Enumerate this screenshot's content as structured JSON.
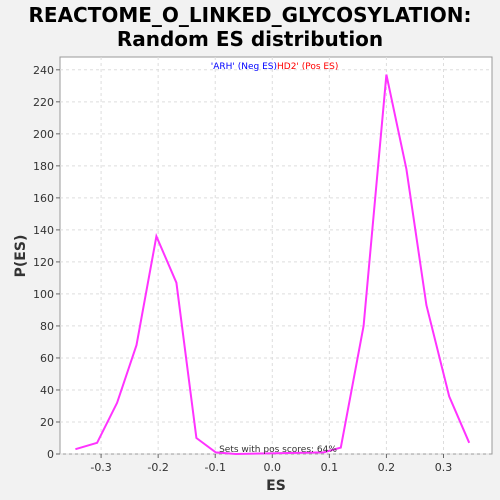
{
  "chart_data": {
    "type": "line",
    "title_line1": "REACTOME_O_LINKED_GLYCOSYLATION:",
    "title_line2": "Random ES distribution",
    "xlabel": "ES",
    "ylabel": "P(ES)",
    "xlim": [
      -0.372,
      0.385
    ],
    "ylim": [
      0,
      248
    ],
    "x_ticks": [
      -0.3,
      -0.2,
      -0.1,
      0.0,
      0.1,
      0.2,
      0.3
    ],
    "x_tick_labels": [
      "-0.3",
      "-0.2",
      "-0.1",
      "0.0",
      "0.1",
      "0.2",
      "0.3"
    ],
    "y_ticks": [
      0,
      20,
      40,
      60,
      80,
      100,
      120,
      140,
      160,
      180,
      200,
      220,
      240
    ],
    "y_tick_labels": [
      "0",
      "20",
      "40",
      "60",
      "80",
      "100",
      "120",
      "140",
      "160",
      "180",
      "200",
      "220",
      "240"
    ],
    "grid": true,
    "series": [
      {
        "color": "#ff33ff",
        "x": [
          -0.345,
          -0.307,
          -0.272,
          -0.238,
          -0.203,
          -0.168,
          -0.133,
          -0.099,
          -0.064,
          0.09,
          0.12,
          0.16,
          0.2,
          0.235,
          0.27,
          0.31,
          0.345
        ],
        "y": [
          3,
          7,
          32,
          68,
          136,
          107,
          10,
          1,
          0,
          1,
          4,
          80,
          237,
          178,
          93,
          36,
          7
        ]
      }
    ],
    "annotations": {
      "neg_label": "'ARH' (Neg ES)",
      "pos_label": "HD2' (Pos ES)",
      "neg_color": "#0000ff",
      "pos_color": "#ff0000",
      "footer": "Sets with pos scores: 64%"
    }
  }
}
